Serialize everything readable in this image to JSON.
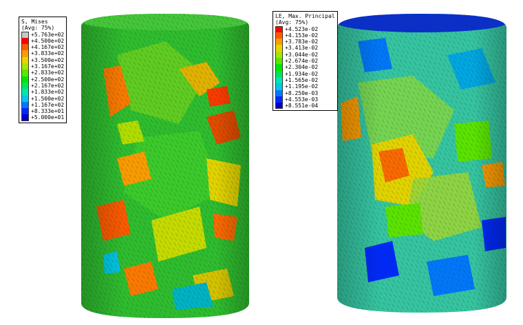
{
  "figure": {
    "left_model": {
      "title_line1": "S, Mises",
      "title_line2": "(Avg: 75%)",
      "legend": [
        {
          "value": "+5.763e+02",
          "color": "#c8c8c8"
        },
        {
          "value": "+4.500e+02",
          "color": "#ff0000"
        },
        {
          "value": "+4.167e+02",
          "color": "#ff5a00"
        },
        {
          "value": "+3.833e+02",
          "color": "#ff9d00"
        },
        {
          "value": "+3.500e+02",
          "color": "#e6d600"
        },
        {
          "value": "+3.167e+02",
          "color": "#a8e600"
        },
        {
          "value": "+2.833e+02",
          "color": "#5ce600"
        },
        {
          "value": "+2.500e+02",
          "color": "#00e600"
        },
        {
          "value": "+2.167e+02",
          "color": "#00e65a"
        },
        {
          "value": "+1.833e+02",
          "color": "#00e6b4"
        },
        {
          "value": "+1.500e+02",
          "color": "#00c8e6"
        },
        {
          "value": "+1.167e+02",
          "color": "#0078ff"
        },
        {
          "value": "+8.333e+01",
          "color": "#0028ff"
        },
        {
          "value": "+5.000e+01",
          "color": "#0000c8"
        }
      ],
      "base_color": "#2fbf2f"
    },
    "right_model": {
      "title_line1": "LE, Max. Principal",
      "title_line2": "(Avg: 75%)",
      "legend": [
        {
          "value": "+4.523e-02",
          "color": "#ff0000"
        },
        {
          "value": "+4.153e-02",
          "color": "#ff5a00"
        },
        {
          "value": "+3.783e-02",
          "color": "#ff9d00"
        },
        {
          "value": "+3.413e-02",
          "color": "#e6d600"
        },
        {
          "value": "+3.044e-02",
          "color": "#a8e600"
        },
        {
          "value": "+2.674e-02",
          "color": "#5ce600"
        },
        {
          "value": "+2.304e-02",
          "color": "#00e600"
        },
        {
          "value": "+1.934e-02",
          "color": "#00e65a"
        },
        {
          "value": "+1.565e-02",
          "color": "#00e6b4"
        },
        {
          "value": "+1.195e-02",
          "color": "#00c8e6"
        },
        {
          "value": "+8.250e-03",
          "color": "#0078ff"
        },
        {
          "value": "+4.553e-03",
          "color": "#0028ff"
        },
        {
          "value": "+8.551e-04",
          "color": "#0000c8"
        }
      ],
      "base_color": "#36c7a4"
    }
  }
}
